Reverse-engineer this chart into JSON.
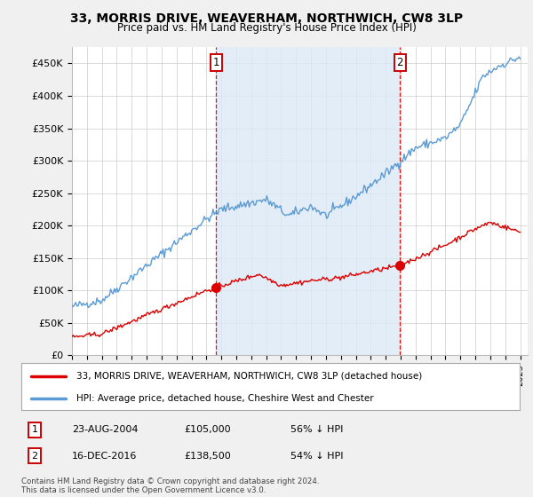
{
  "title": "33, MORRIS DRIVE, WEAVERHAM, NORTHWICH, CW8 3LP",
  "subtitle": "Price paid vs. HM Land Registry's House Price Index (HPI)",
  "ylim": [
    0,
    475000
  ],
  "yticks": [
    0,
    50000,
    100000,
    150000,
    200000,
    250000,
    300000,
    350000,
    400000,
    450000
  ],
  "ytick_labels": [
    "£0",
    "£50K",
    "£100K",
    "£150K",
    "£200K",
    "£250K",
    "£300K",
    "£350K",
    "£400K",
    "£450K"
  ],
  "sale1_date": 2004.65,
  "sale1_price": 105000,
  "sale2_date": 2016.96,
  "sale2_price": 138500,
  "red_line_color": "#dd0000",
  "blue_line_color": "#5b9bd5",
  "dashed_line_color": "#dd0000",
  "shade_color": "#dce9f5",
  "legend_label_red": "33, MORRIS DRIVE, WEAVERHAM, NORTHWICH, CW8 3LP (detached house)",
  "legend_label_blue": "HPI: Average price, detached house, Cheshire West and Chester",
  "annotation1_label": "1",
  "annotation1_date": "23-AUG-2004",
  "annotation1_price": "£105,000",
  "annotation1_pct": "56% ↓ HPI",
  "annotation2_label": "2",
  "annotation2_date": "16-DEC-2016",
  "annotation2_price": "£138,500",
  "annotation2_pct": "54% ↓ HPI",
  "footer": "Contains HM Land Registry data © Crown copyright and database right 2024.\nThis data is licensed under the Open Government Licence v3.0.",
  "bg_color": "#f0f0f0",
  "plot_bg_color": "#ffffff"
}
